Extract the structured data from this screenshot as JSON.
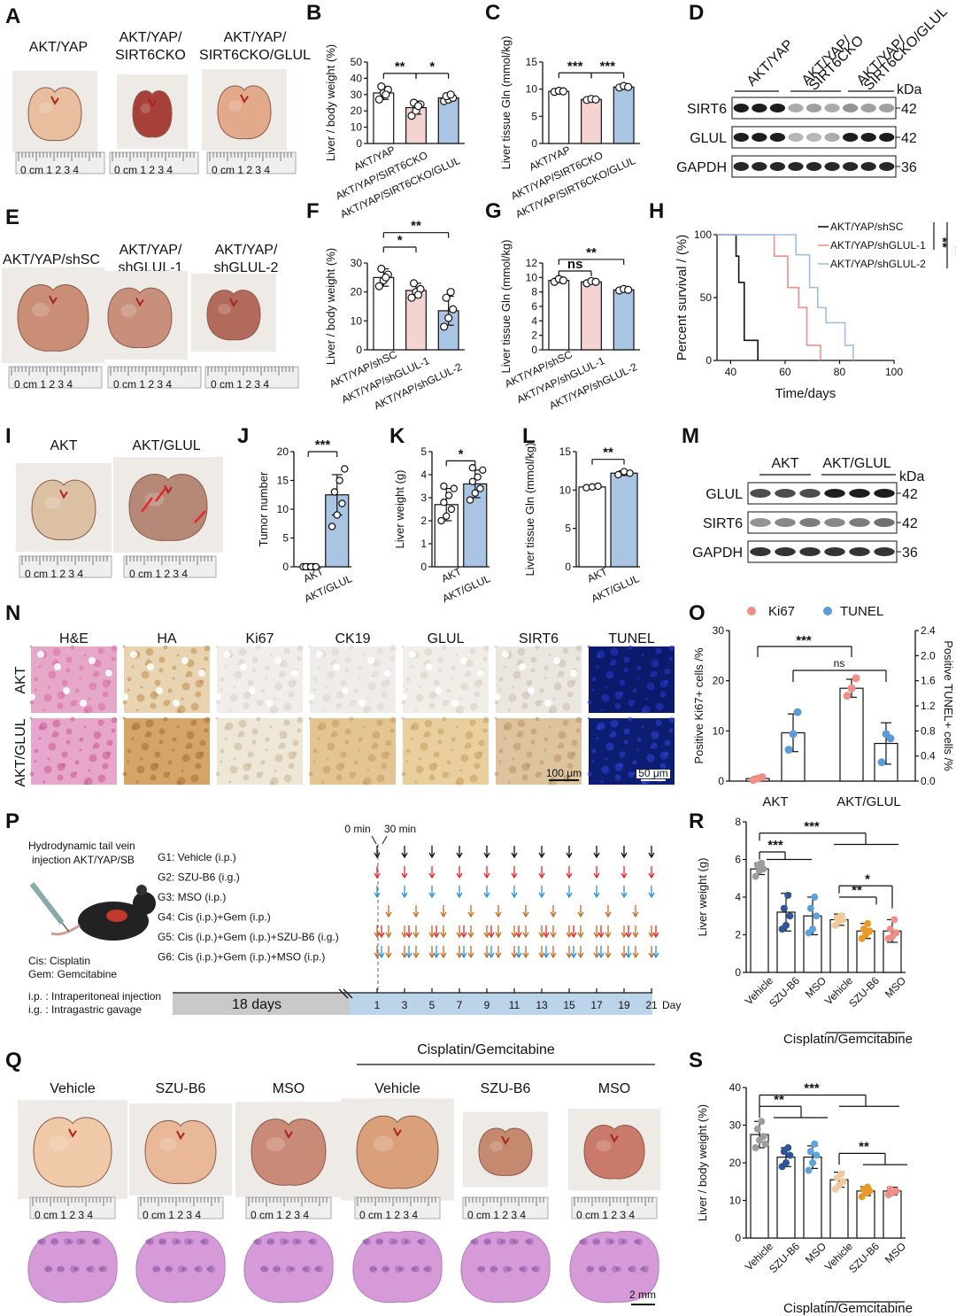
{
  "panels": {
    "A": "A",
    "B": "B",
    "C": "C",
    "D": "D",
    "E": "E",
    "F": "F",
    "G": "G",
    "H": "H",
    "I": "I",
    "J": "J",
    "K": "K",
    "L": "L",
    "M": "M",
    "N": "N",
    "O": "O",
    "P": "P",
    "Q": "Q",
    "R": "R",
    "S": "S"
  },
  "A": {
    "labels": [
      [
        "AKT/YAP"
      ],
      [
        "AKT/YAP/",
        "SIRT6CKO"
      ],
      [
        "AKT/YAP/",
        "SIRT6CKO/GLUL"
      ]
    ]
  },
  "E": {
    "labels": [
      [
        "AKT/YAP/shSC"
      ],
      [
        "AKT/YAP/",
        "shGLUL-1"
      ],
      [
        "AKT/YAP/",
        "shGLUL-2"
      ]
    ]
  },
  "I": {
    "labels": [
      "AKT",
      "AKT/GLUL"
    ]
  },
  "D": {
    "lanes": [
      "AKT/YAP",
      "AKT/YAP/SIRT6CKO",
      "AKT/YAP/SIRT6CKO/GLUL"
    ],
    "rows": [
      "SIRT6",
      "GLUL",
      "GAPDH"
    ],
    "kda": "kDa",
    "sizes": [
      "42",
      "42",
      "36"
    ]
  },
  "M": {
    "lanes": [
      "AKT",
      "AKT/GLUL"
    ],
    "rows": [
      "GLUL",
      "SIRT6",
      "GAPDH"
    ],
    "kda": "kDa",
    "sizes": [
      "42",
      "42",
      "36"
    ]
  },
  "N": {
    "cols": [
      "H&E",
      "HA",
      "Ki67",
      "CK19",
      "GLUL",
      "SIRT6",
      "TUNEL"
    ],
    "rows": [
      "AKT",
      "AKT/GLUL"
    ],
    "scale1": "100 μm",
    "scale2": "50 μm"
  },
  "P": {
    "title1": "Hydrodynamic tail vein",
    "title2": "injection AKT/YAP/SB",
    "groups": [
      "G1: Vehicle (i.p.)",
      "G2: SZU-B6 (i.g.)",
      "G3: MSO (i.p.)",
      "G4: Cis (i.p.)+Gem (i.p.)",
      "G5: Cis (i.p.)+Gem (i.p.)+SZU-B6 (i.g.)",
      "G6: Cis (i.p.)+Gem (i.p.)+MSO (i.p.)"
    ],
    "group_colors": [
      "#111111",
      "#e8262a",
      "#2b8fe0",
      "#e07a2a",
      "#e07a2a",
      "#e07a2a"
    ],
    "t0": "0 min",
    "t30": "30 min",
    "legend": [
      "Cis: Cisplatin",
      "Gem: Gemcitabine",
      "i.p. : Intraperitoneal injection",
      "i.g. : Intragastric gavage"
    ],
    "days": "18 days",
    "day_ticks": [
      "1",
      "3",
      "5",
      "7",
      "9",
      "11",
      "13",
      "15",
      "17",
      "19",
      "21"
    ],
    "day_label": "Day"
  },
  "Q": {
    "header": "Cisplatin/Gemcitabine",
    "labels": [
      "Vehicle",
      "SZU-B6",
      "MSO",
      "Vehicle",
      "SZU-B6",
      "MSO"
    ],
    "scale": "2 mm"
  },
  "chart_data": [
    {
      "id": "B",
      "type": "bar",
      "ylabel": "Liver / body weight (%)",
      "ylim": [
        0,
        50
      ],
      "yticks": [
        0,
        10,
        20,
        30,
        40,
        50
      ],
      "categories": [
        "AKT/YAP",
        "AKT/YAP/SIRT6CKO",
        "AKT/YAP/SIRT6CKO/GLUL"
      ],
      "values": [
        31,
        22,
        28
      ],
      "errors": [
        4,
        4,
        2
      ],
      "colors": [
        "#ffffff",
        "#f5d3d0",
        "#aac4e3"
      ],
      "points": [
        [
          27,
          31,
          33,
          35,
          30
        ],
        [
          17,
          20,
          24,
          25,
          23
        ],
        [
          26,
          27,
          28,
          29,
          30
        ]
      ],
      "sig": [
        {
          "a": 0,
          "b": 1,
          "label": "**",
          "y": 43
        },
        {
          "a": 1,
          "b": 2,
          "label": "*",
          "y": 43
        }
      ]
    },
    {
      "id": "C",
      "type": "bar",
      "ylabel": "Liver tissue Gln (mmol/kg)",
      "ylim": [
        0,
        15
      ],
      "yticks": [
        0,
        5,
        10,
        15
      ],
      "categories": [
        "AKT/YAP",
        "AKT/YAP/SIRT6CKO",
        "AKT/YAP/SIRT6CKO/GLUL"
      ],
      "values": [
        9.6,
        8.1,
        10.4
      ],
      "errors": [
        0.2,
        0.2,
        0.3
      ],
      "colors": [
        "#ffffff",
        "#f5d3d0",
        "#aac4e3"
      ],
      "points": [
        [
          9.5,
          9.7,
          9.6
        ],
        [
          8.0,
          8.2,
          8.1
        ],
        [
          10.3,
          10.6,
          10.4
        ]
      ],
      "sig": [
        {
          "a": 0,
          "b": 1,
          "label": "***",
          "y": 13
        },
        {
          "a": 1,
          "b": 2,
          "label": "***",
          "y": 13
        }
      ]
    },
    {
      "id": "F",
      "type": "bar",
      "ylabel": "Liver / body weight (%)",
      "ylim": [
        0,
        30
      ],
      "yticks": [
        0,
        10,
        20,
        30
      ],
      "categories": [
        "AKT/YAP/shSC",
        "AKT/YAP/shGLUL-1",
        "AKT/YAP/shGLUL-2"
      ],
      "values": [
        25,
        20.5,
        13.5
      ],
      "errors": [
        3,
        2.5,
        5
      ],
      "colors": [
        "#ffffff",
        "#f5d3d0",
        "#aac4e3"
      ],
      "points": [
        [
          22,
          24,
          26,
          28,
          25
        ],
        [
          18,
          20,
          21,
          23,
          19
        ],
        [
          8,
          11,
          14,
          18,
          20
        ]
      ],
      "sig": [
        {
          "a": 0,
          "b": 1,
          "label": "*",
          "y": 35.5
        },
        {
          "a": 0,
          "b": 2,
          "label": "**",
          "y": 40.5
        }
      ]
    },
    {
      "id": "G",
      "type": "bar",
      "ylabel": "Liver tissue Gln (mmol/kg)",
      "ylim": [
        0,
        12
      ],
      "yticks": [
        0,
        2,
        4,
        6,
        8,
        10,
        12
      ],
      "categories": [
        "AKT/YAP/shSC",
        "AKT/YAP/shGLUL-1",
        "AKT/YAP/shGLUL-2"
      ],
      "values": [
        9.6,
        9.4,
        8.3
      ],
      "errors": [
        0.3,
        0.2,
        0.2
      ],
      "colors": [
        "#ffffff",
        "#f5d3d0",
        "#aac4e3"
      ],
      "points": [
        [
          9.4,
          9.8,
          9.6
        ],
        [
          9.2,
          9.5,
          9.4
        ],
        [
          8.2,
          8.4,
          8.3
        ]
      ],
      "sig": [
        {
          "a": 0,
          "b": 1,
          "label": "ns",
          "y": 10.9
        },
        {
          "a": 0,
          "b": 2,
          "label": "**",
          "y": 12.5
        }
      ]
    },
    {
      "id": "H",
      "type": "line",
      "xlabel": "Time/days",
      "ylabel": "Percent survival / (%)",
      "xlim": [
        35,
        100
      ],
      "xticks": [
        40,
        60,
        80,
        100
      ],
      "yticks": [
        0,
        50,
        100
      ],
      "ylim": [
        0,
        100
      ],
      "series": [
        {
          "name": "AKT/YAP/shSC",
          "color": "#111111",
          "steps": [
            [
              35,
              100
            ],
            [
              42,
              100
            ],
            [
              42,
              83
            ],
            [
              43,
              83
            ],
            [
              43,
              62
            ],
            [
              45,
              62
            ],
            [
              45,
              16
            ],
            [
              50,
              16
            ],
            [
              50,
              0
            ]
          ]
        },
        {
          "name": "AKT/YAP/shGLUL-1",
          "color": "#ef8f87",
          "steps": [
            [
              35,
              100
            ],
            [
              56,
              100
            ],
            [
              56,
              83
            ],
            [
              61,
              83
            ],
            [
              61,
              58
            ],
            [
              65,
              58
            ],
            [
              65,
              42
            ],
            [
              68,
              42
            ],
            [
              68,
              12
            ],
            [
              73,
              12
            ],
            [
              73,
              0
            ]
          ]
        },
        {
          "name": "AKT/YAP/shGLUL-2",
          "color": "#9cc0e6",
          "steps": [
            [
              35,
              100
            ],
            [
              64,
              100
            ],
            [
              64,
              84
            ],
            [
              69,
              84
            ],
            [
              69,
              58
            ],
            [
              72,
              58
            ],
            [
              72,
              42
            ],
            [
              75,
              42
            ],
            [
              75,
              30
            ],
            [
              82,
              30
            ],
            [
              82,
              12
            ],
            [
              85,
              12
            ],
            [
              85,
              0
            ]
          ]
        }
      ],
      "sig": [
        "**",
        "**"
      ]
    },
    {
      "id": "J",
      "type": "bar",
      "ylabel": "Tumor number",
      "ylim": [
        0,
        20
      ],
      "yticks": [
        0,
        5,
        10,
        15,
        20
      ],
      "categories": [
        "AKT",
        "AKT/GLUL"
      ],
      "values": [
        0,
        12.5
      ],
      "errors": [
        0,
        3.5
      ],
      "colors": [
        "#ffffff",
        "#aac4e3"
      ],
      "points": [
        [
          0,
          0,
          0,
          0,
          0,
          0
        ],
        [
          7,
          9,
          11,
          13,
          15,
          17
        ]
      ],
      "sig": [
        {
          "a": 0,
          "b": 1,
          "label": "***",
          "y": 20
        }
      ]
    },
    {
      "id": "K",
      "type": "bar",
      "ylabel": "Liver weight (g)",
      "ylim": [
        0,
        5
      ],
      "yticks": [
        0,
        1,
        2,
        3,
        4,
        5
      ],
      "categories": [
        "AKT",
        "AKT/GLUL"
      ],
      "values": [
        2.7,
        3.6
      ],
      "errors": [
        0.7,
        0.6
      ],
      "colors": [
        "#ffffff",
        "#aac4e3"
      ],
      "points": [
        [
          2,
          2.2,
          2.5,
          2.8,
          3.1,
          3.4,
          3.5
        ],
        [
          2.9,
          3.2,
          3.4,
          3.7,
          3.9,
          4.2,
          4.3
        ]
      ],
      "sig": [
        {
          "a": 0,
          "b": 1,
          "label": "*",
          "y": 4.6
        }
      ]
    },
    {
      "id": "L",
      "type": "bar",
      "ylabel": "Liver tissue Gln (mmol/kg)",
      "ylim": [
        0,
        15
      ],
      "yticks": [
        0,
        5,
        10,
        15
      ],
      "categories": [
        "AKT",
        "AKT/GLUL"
      ],
      "values": [
        10.4,
        12.2
      ],
      "errors": [
        0.15,
        0.3
      ],
      "colors": [
        "#ffffff",
        "#aac4e3"
      ],
      "points": [
        [
          10.3,
          10.4,
          10.5
        ],
        [
          12.0,
          12.4,
          12.2
        ]
      ],
      "sig": [
        {
          "a": 0,
          "b": 1,
          "label": "**",
          "y": 14
        }
      ]
    },
    {
      "id": "O",
      "type": "bar",
      "ylabel": "Positive Ki67+ cells /%",
      "y2label": "Positive TUNEL+ cells /%",
      "ylim": [
        0,
        30
      ],
      "yticks": [
        0,
        10,
        20,
        30
      ],
      "y2lim": [
        0,
        2.4
      ],
      "y2ticks": [
        0.0,
        0.4,
        0.8,
        1.2,
        1.6,
        2.0,
        2.4
      ],
      "categories": [
        "AKT",
        "AKT/GLUL"
      ],
      "series": [
        {
          "name": "Ki67",
          "color": "#ef8f87",
          "values": [
            0.5,
            18.5
          ],
          "errors": [
            0.4,
            1.8
          ],
          "points": [
            [
              0.2,
              0.5,
              0.8
            ],
            [
              17,
              18.5,
              20.5
            ]
          ]
        },
        {
          "name": "TUNEL",
          "color": "#5b9bd9",
          "axis": "right",
          "values": [
            0.77,
            0.6
          ],
          "errors": [
            0.3,
            0.33
          ],
          "points": [
            [
              0.5,
              0.75,
              1.1
            ],
            [
              0.3,
              0.75,
              0.68
            ]
          ]
        }
      ],
      "sig": [
        {
          "label": "***",
          "y": 27.7
        },
        {
          "label": "ns",
          "y": 24.2
        }
      ]
    },
    {
      "id": "R",
      "type": "bar",
      "ylabel": "Liver weight (g)",
      "ylim": [
        0,
        8
      ],
      "yticks": [
        0,
        2,
        4,
        6,
        8
      ],
      "categories": [
        "Vehicle",
        "SZU-B6",
        "MSO",
        "Vehicle",
        "SZU-B6",
        "MSO"
      ],
      "group_label": "Cisplatin/Gemcitabine",
      "values": [
        5.5,
        3.2,
        3.0,
        2.8,
        2.2,
        2.2
      ],
      "errors": [
        0.3,
        1.0,
        1.0,
        0.3,
        0.4,
        0.6
      ],
      "point_colors": [
        "#9d9d9d",
        "#2f5597",
        "#5ba3d9",
        "#f1c99b",
        "#e89b2a",
        "#ef8f87"
      ],
      "points": [
        [
          5.1,
          5.4,
          5.5,
          5.7,
          5.8
        ],
        [
          2.3,
          2.5,
          3.0,
          3.4,
          4.1
        ],
        [
          2.1,
          2.3,
          3.0,
          3.4,
          4.0
        ],
        [
          2.5,
          2.7,
          2.8,
          2.9,
          3.0
        ],
        [
          1.8,
          2.0,
          2.2,
          2.3,
          2.6
        ],
        [
          1.8,
          1.9,
          2.1,
          2.3,
          2.8
        ]
      ],
      "sig": [
        "***",
        "***",
        "**",
        "*"
      ]
    },
    {
      "id": "S",
      "type": "bar",
      "ylabel": "Liver / body weight (%)",
      "ylim": [
        0,
        40
      ],
      "yticks": [
        0,
        10,
        20,
        30,
        40
      ],
      "categories": [
        "Vehicle",
        "SZU-B6",
        "MSO",
        "Vehicle",
        "SZU-B6",
        "MSO"
      ],
      "group_label": "Cisplatin/Gemcitabine",
      "values": [
        27.5,
        21.5,
        21.5,
        15.5,
        12.5,
        12.5
      ],
      "errors": [
        3.5,
        2.5,
        3.0,
        2.0,
        1.2,
        1.0
      ],
      "point_colors": [
        "#9d9d9d",
        "#2f5597",
        "#5ba3d9",
        "#f1c99b",
        "#e89b2a",
        "#ef8f87"
      ],
      "points": [
        [
          24,
          26,
          27,
          29,
          31,
          25
        ],
        [
          19,
          20,
          22,
          23,
          24
        ],
        [
          18,
          20,
          22,
          23,
          25
        ],
        [
          13,
          14,
          15,
          16,
          17
        ],
        [
          11,
          12,
          12.5,
          13,
          13.5
        ],
        [
          11.5,
          12,
          12.5,
          13
        ]
      ],
      "sig": [
        "***",
        "**",
        "**"
      ]
    }
  ]
}
